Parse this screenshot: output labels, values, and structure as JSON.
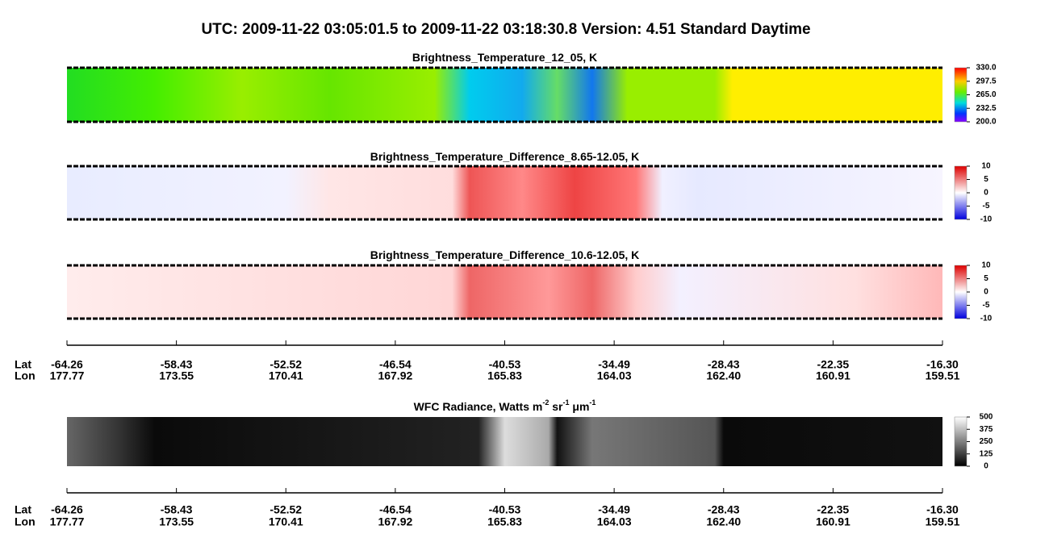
{
  "title": "UTC:  2009-11-22   03:05:01.5  to  2009-11-22   03:18:30.8    Version: 4.51  Standard Daytime",
  "panels": [
    {
      "title": [
        "Brightness_Temperature_12_05, K"
      ],
      "colorbar": {
        "ticks": [
          {
            "value": 330,
            "label": "330.0"
          },
          297.5,
          {
            "value": 265,
            "label": "265.0"
          },
          232.5,
          {
            "value": 200,
            "label": "200.0"
          }
        ]
      }
    },
    {
      "title": [
        "Brightness_Temperature_Difference_8.65-12.05, K"
      ],
      "colorbar": {
        "ticks": [
          10,
          5,
          0,
          -5,
          -10
        ]
      }
    },
    {
      "title": [
        "Brightness_Temperature_Difference_10.6-12.05, K"
      ],
      "colorbar": {
        "ticks": [
          10,
          5,
          0,
          -5,
          -10
        ]
      }
    },
    {
      "title": [
        "WFC Radiance, Watts m",
        "-2",
        " sr",
        "-1",
        " μm",
        "-1"
      ],
      "colorbar": {
        "ticks": [
          500,
          375,
          250,
          125,
          0
        ]
      }
    }
  ],
  "axes": [
    {
      "lat_label": "Lat",
      "lon_label": "Lon",
      "lat": [
        -64.26,
        -58.43,
        -52.52,
        -46.54,
        -40.53,
        -34.49,
        -28.43,
        -22.35,
        {
          "value": -16.3,
          "label": "-16.30"
        }
      ],
      "lon": [
        177.77,
        173.55,
        170.41,
        167.92,
        165.83,
        164.03,
        {
          "value": 162.4,
          "label": "162.40"
        },
        160.91,
        159.51
      ]
    },
    {
      "lat_label": "Lat",
      "lon_label": "Lon",
      "lat": [
        -64.26,
        -58.43,
        -52.52,
        -46.54,
        -40.53,
        -34.49,
        -28.43,
        -22.35,
        {
          "value": -16.3,
          "label": "-16.30"
        }
      ],
      "lon": [
        177.77,
        173.55,
        170.41,
        167.92,
        165.83,
        164.03,
        {
          "value": 162.4,
          "label": "162.40"
        },
        160.91,
        159.51
      ]
    }
  ]
}
